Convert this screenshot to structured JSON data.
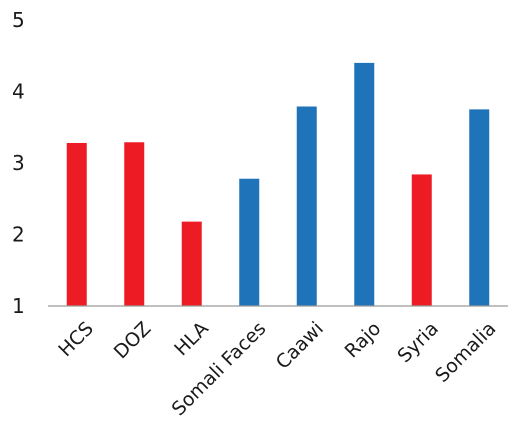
{
  "chart_data": {
    "type": "bar",
    "title": "",
    "xlabel": "",
    "ylabel": "",
    "categories": [
      "HCS",
      "DOZ",
      "HLA",
      "Somali Faces",
      "Caawi",
      "Rajo",
      "Syria",
      "Somalia"
    ],
    "values": [
      3.28,
      3.29,
      2.18,
      2.78,
      3.79,
      4.4,
      2.84,
      3.75
    ],
    "bar_colors": [
      "#ed1c24",
      "#ed1c24",
      "#ed1c24",
      "#1f73b8",
      "#1f73b8",
      "#1f73b8",
      "#ed1c24",
      "#1f73b8"
    ],
    "ylim": [
      1,
      5
    ],
    "yticks": [
      1,
      2,
      3,
      4,
      5
    ],
    "grid": false,
    "legend": "none"
  }
}
